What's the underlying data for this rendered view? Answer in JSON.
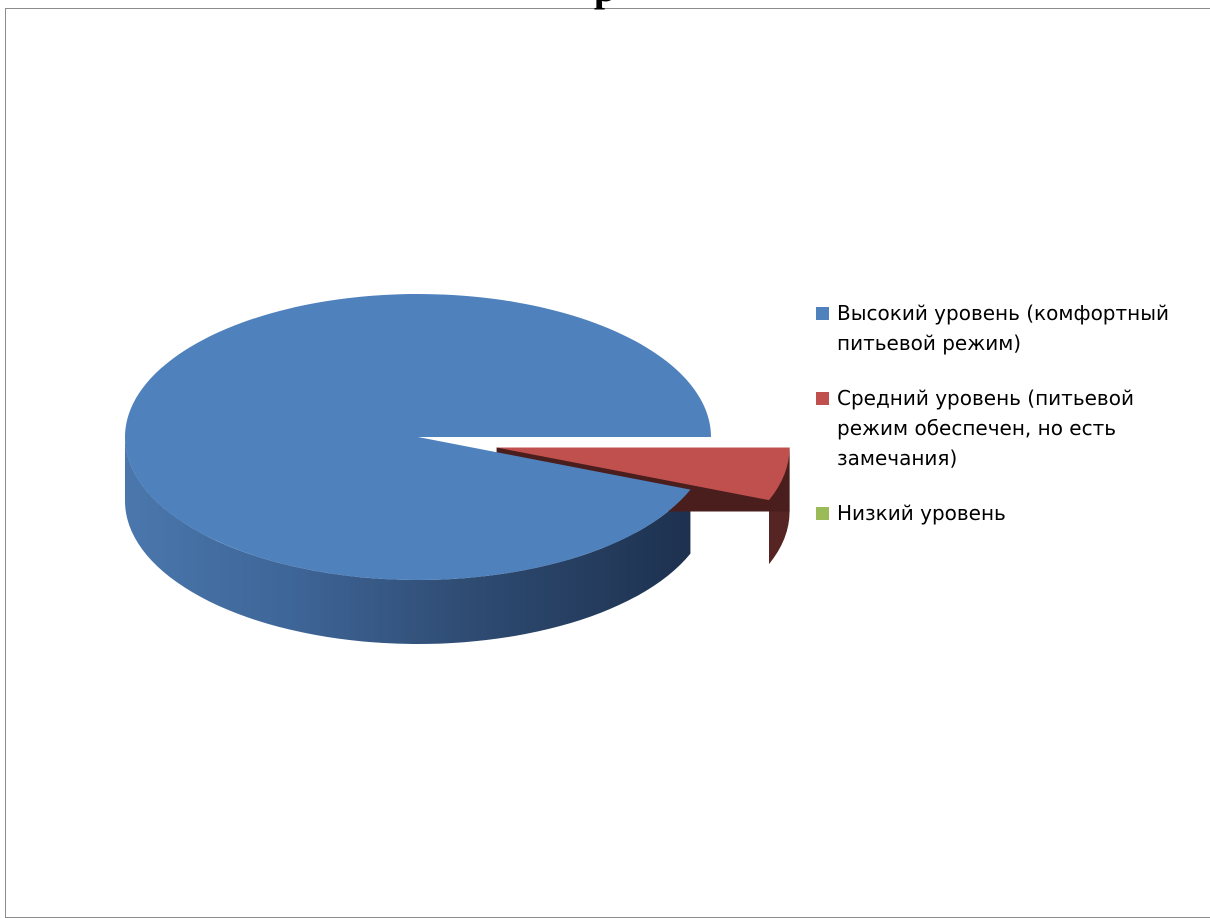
{
  "chart_data": {
    "type": "pie",
    "style": "3d-exploded",
    "title": "",
    "title_visible_fragment": "р",
    "categories": [
      "Высокий уровень (комфортный питьевой режим)",
      "Средний уровень (питьевой режим обеспечен, но есть замечания)",
      "Низкий уровень"
    ],
    "values": [
      94,
      6,
      0
    ],
    "unit": "%",
    "colors": [
      "#4f81bd",
      "#c0504d",
      "#9bbb59"
    ],
    "exploded": [
      false,
      true,
      false
    ],
    "legend_position": "right"
  }
}
